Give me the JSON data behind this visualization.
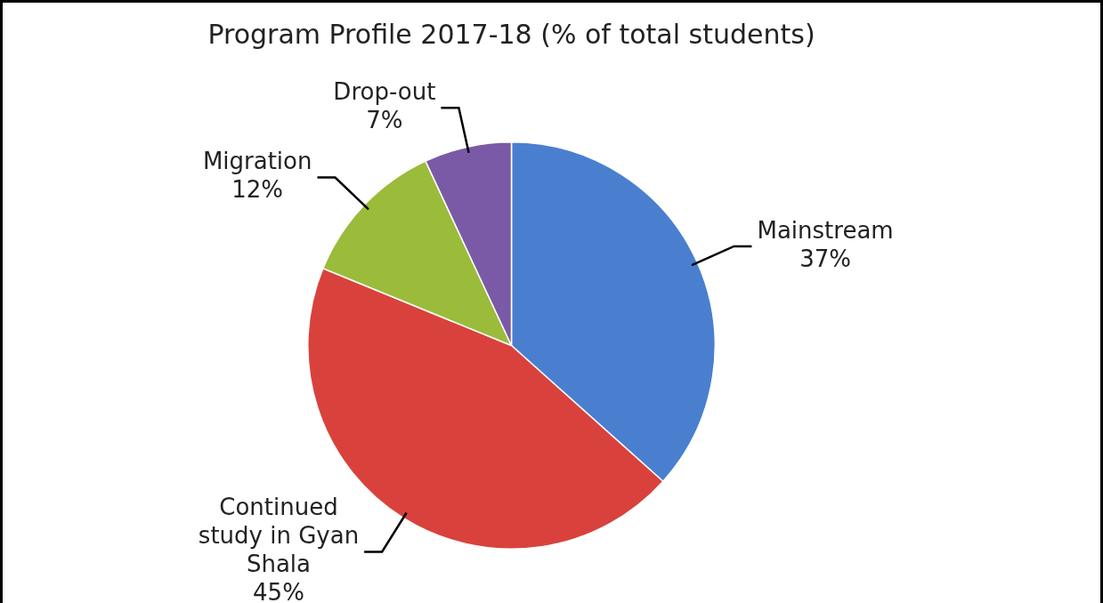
{
  "chart_data": {
    "type": "pie",
    "title": "Program Profile 2017-18 (% of total students)",
    "categories": [
      "Mainstream",
      "Continued study in Gyan Shala",
      "Migration",
      "Drop-out"
    ],
    "values": [
      37,
      45,
      12,
      7
    ],
    "value_labels": [
      "37%",
      "45%",
      "12%",
      "7%"
    ],
    "colors": [
      "#4a7fd0",
      "#d9423c",
      "#9bbb3b",
      "#7a5aa6"
    ],
    "legend": false
  }
}
